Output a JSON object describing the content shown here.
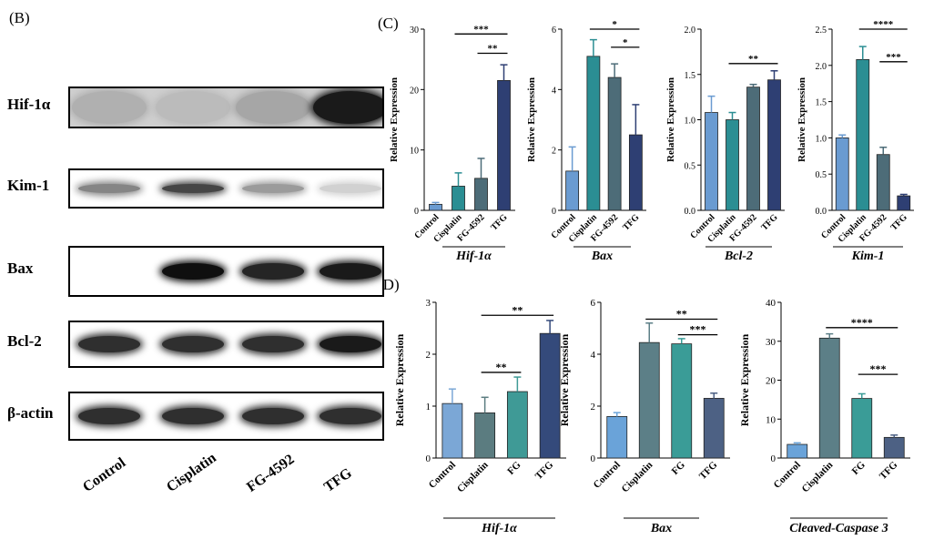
{
  "panel_labels": {
    "b": "(B)",
    "c": "(C)",
    "d": "(D)"
  },
  "blot": {
    "rows": [
      {
        "label": "Hif-1α",
        "intensity": [
          0.25,
          0.2,
          0.3,
          0.95
        ]
      },
      {
        "label": "Kim-1",
        "intensity": [
          0.45,
          0.75,
          0.35,
          0.1
        ]
      },
      {
        "label": "Bax",
        "intensity": [
          0.0,
          1.0,
          0.9,
          0.95
        ]
      },
      {
        "label": "Bcl-2",
        "intensity": [
          0.85,
          0.85,
          0.85,
          0.95
        ]
      },
      {
        "label": "β-actin",
        "intensity": [
          0.85,
          0.85,
          0.85,
          0.85
        ]
      }
    ],
    "lanes": [
      "Control",
      "Cisplatin",
      "FG-4592",
      "TFG"
    ]
  },
  "chart_data": [
    {
      "type": "bar",
      "panel": "C",
      "title": "Hif-1α",
      "ylabel": "Relative Expression",
      "ylim": [
        0,
        30
      ],
      "yticks": [
        "0",
        "10",
        "20",
        "30"
      ],
      "categories": [
        "Control",
        "Cisplatin",
        "FG-4592",
        "TFG"
      ],
      "values": [
        1.0,
        4.0,
        5.3,
        21.5
      ],
      "errors": [
        0.3,
        2.2,
        3.3,
        2.6
      ],
      "colors": [
        "#6a9bd1",
        "#2b8e93",
        "#4d6c78",
        "#2e3f73"
      ],
      "annotations": [
        {
          "from": 2,
          "to": 3,
          "label": "**",
          "level": 26
        },
        {
          "from": 1,
          "to": 3,
          "label": "***",
          "level": 29.2
        }
      ]
    },
    {
      "type": "bar",
      "panel": "C",
      "title": "Bax",
      "ylabel": "Relative Expression",
      "ylim": [
        0,
        6
      ],
      "yticks": [
        "0",
        "2",
        "4",
        "6"
      ],
      "categories": [
        "Control",
        "Cisplatin",
        "FG-4592",
        "TFG"
      ],
      "values": [
        1.3,
        5.1,
        4.4,
        2.5
      ],
      "errors": [
        0.8,
        0.55,
        0.45,
        1.0
      ],
      "colors": [
        "#6a9bd1",
        "#2b8e93",
        "#4d6c78",
        "#2e3f73"
      ],
      "annotations": [
        {
          "from": 2,
          "to": 3,
          "label": "*",
          "level": 5.4
        },
        {
          "from": 1,
          "to": 3,
          "label": "*",
          "level": 6.0
        }
      ]
    },
    {
      "type": "bar",
      "panel": "C",
      "title": "Bcl-2",
      "ylabel": "Relative Expression",
      "ylim": [
        0,
        2.0
      ],
      "yticks": [
        "0.0",
        "0.5",
        "1.0",
        "1.5",
        "2.0"
      ],
      "categories": [
        "Control",
        "Cisplatin",
        "FG-4592",
        "TFG"
      ],
      "values": [
        1.08,
        1.0,
        1.36,
        1.44
      ],
      "errors": [
        0.18,
        0.08,
        0.03,
        0.1
      ],
      "colors": [
        "#6a9bd1",
        "#2b8e93",
        "#4d6c78",
        "#2e3f73"
      ],
      "annotations": [
        {
          "from": 1,
          "to": 3,
          "label": "**",
          "level": 1.62
        }
      ]
    },
    {
      "type": "bar",
      "panel": "C",
      "title": "Kim-1",
      "ylabel": "Relative Expression",
      "ylim": [
        0,
        2.5
      ],
      "yticks": [
        "0.0",
        "0.5",
        "1.0",
        "1.5",
        "2.0",
        "2.5"
      ],
      "categories": [
        "Control",
        "Cisplatin",
        "FG-4592",
        "TFG"
      ],
      "values": [
        1.0,
        2.08,
        0.77,
        0.2
      ],
      "errors": [
        0.04,
        0.18,
        0.1,
        0.02
      ],
      "colors": [
        "#6a9bd1",
        "#2b8e93",
        "#4d6c78",
        "#2e3f73"
      ],
      "annotations": [
        {
          "from": 2,
          "to": 3,
          "label": "***",
          "level": 2.05
        },
        {
          "from": 1,
          "to": 3,
          "label": "****",
          "level": 2.5
        }
      ]
    },
    {
      "type": "bar",
      "panel": "D",
      "title": "Hif-1α",
      "ylabel": "Relative Expression",
      "ylim": [
        0,
        3
      ],
      "yticks": [
        "0",
        "1",
        "2",
        "3"
      ],
      "categories": [
        "Control",
        "Cisplatin",
        "FG",
        "TFG"
      ],
      "values": [
        1.05,
        0.87,
        1.28,
        2.4
      ],
      "errors": [
        0.28,
        0.3,
        0.28,
        0.25
      ],
      "colors": [
        "#7ba7d6",
        "#5b7c80",
        "#3f9a96",
        "#344a7b"
      ],
      "annotations": [
        {
          "from": 1,
          "to": 2,
          "label": "**",
          "level": 1.65
        },
        {
          "from": 1,
          "to": 3,
          "label": "**",
          "level": 2.75
        }
      ]
    },
    {
      "type": "bar",
      "panel": "D",
      "title": "Bax",
      "ylabel": "Relative Expression",
      "ylim": [
        0,
        6
      ],
      "yticks": [
        "0",
        "2",
        "4",
        "6"
      ],
      "categories": [
        "Control",
        "Cisplatin",
        "FG",
        "TFG"
      ],
      "values": [
        1.6,
        4.45,
        4.4,
        2.3
      ],
      "errors": [
        0.15,
        0.75,
        0.2,
        0.2
      ],
      "colors": [
        "#6aa3d9",
        "#5c7f87",
        "#3a9c97",
        "#4d6184"
      ],
      "annotations": [
        {
          "from": 2,
          "to": 3,
          "label": "***",
          "level": 4.75
        },
        {
          "from": 1,
          "to": 3,
          "label": "**",
          "level": 5.35
        }
      ]
    },
    {
      "type": "bar",
      "panel": "D",
      "title": "Cleaved-Caspase 3",
      "ylabel": "Relative Expression",
      "ylim": [
        0,
        40
      ],
      "yticks": [
        "0",
        "10",
        "20",
        "30",
        "40"
      ],
      "categories": [
        "Control",
        "Cisplatin",
        "FG",
        "TFG"
      ],
      "values": [
        3.5,
        30.8,
        15.3,
        5.3
      ],
      "errors": [
        0.4,
        1.1,
        1.2,
        0.6
      ],
      "colors": [
        "#6aa3d9",
        "#5c7f87",
        "#3a9c97",
        "#4d6184"
      ],
      "annotations": [
        {
          "from": 2,
          "to": 3,
          "label": "***",
          "level": 21.5
        },
        {
          "from": 1,
          "to": 3,
          "label": "****",
          "level": 33.5
        }
      ]
    }
  ]
}
